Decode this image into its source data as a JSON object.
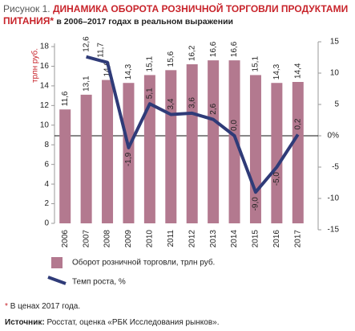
{
  "chart_data": {
    "type": "bar",
    "figure_label": "Рисунок 1.",
    "title": "ДИНАМИКА ОБОРОТА РОЗНИЧНОЙ ТОРГОВЛИ ПРОДУКТАМИ ПИТАНИЯ",
    "title_mark": "*",
    "subtitle": "в 2006–2017 годах в реальном выражении",
    "ylabel": "трлн руб.",
    "categories": [
      "2006",
      "2007",
      "2008",
      "2009",
      "2010",
      "2011",
      "2012",
      "2013",
      "2014",
      "2015",
      "2016",
      "2017"
    ],
    "series": [
      {
        "name": "Оборот розничной торговли, трлн руб.",
        "type": "bar",
        "color": "#b3798f",
        "values": [
          11.6,
          13.1,
          14.6,
          14.3,
          15.1,
          15.6,
          16.2,
          16.6,
          16.6,
          15.1,
          14.3,
          14.4
        ],
        "value_labels": [
          "11,6",
          "13,1",
          "14,6",
          "14,3",
          "15,1",
          "15,6",
          "16,2",
          "16,6",
          "16,6",
          "15,1",
          "14,3",
          "14,4"
        ]
      },
      {
        "name": "Темп роста, %",
        "type": "line",
        "axis": "y2",
        "color": "#2f3b78",
        "values": [
          null,
          12.6,
          11.7,
          -1.9,
          5.1,
          3.4,
          3.6,
          2.6,
          0.0,
          -9.0,
          -5.0,
          0.2
        ],
        "value_labels": [
          null,
          "12,6",
          "11,7",
          "-1,9",
          "5,1",
          "3,4",
          "3,6",
          "2,6",
          "0,0",
          "-9,0",
          "-5,0",
          "0,2"
        ]
      }
    ],
    "ylim": [
      0,
      18
    ],
    "yticks": [
      0,
      2,
      4,
      6,
      8,
      10,
      12,
      14,
      16,
      18
    ],
    "y2lim": [
      -15,
      15
    ],
    "y2ticks": [
      -15,
      -10,
      -5,
      {
        "value": 0,
        "label": "0%"
      },
      5,
      10,
      15
    ],
    "zero_line": true,
    "footnote_mark": "*",
    "footnote": "В ценах 2017 года.",
    "source_label": "Источник:",
    "source": "Росстат, оценка «РБК Исследования рынков»."
  }
}
